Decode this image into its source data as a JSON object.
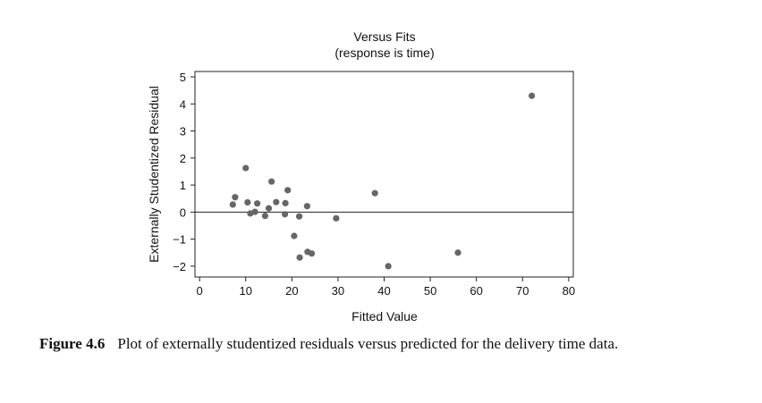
{
  "chart_data": {
    "type": "scatter",
    "title": "Versus Fits",
    "subtitle": "(response is time)",
    "xlabel": "Fitted Value",
    "ylabel": "Externally Studentized Residual",
    "xlim": [
      -1,
      81
    ],
    "ylim": [
      -2.4,
      5.2
    ],
    "xticks": [
      0,
      10,
      20,
      30,
      40,
      50,
      60,
      70,
      80
    ],
    "yticks": [
      -2,
      -1,
      0,
      1,
      2,
      3,
      4,
      5
    ],
    "reference_line_y": 0,
    "grid": false,
    "marker_color": "#666666",
    "points": [
      {
        "x": 7.2,
        "y": 0.28
      },
      {
        "x": 7.7,
        "y": 0.55
      },
      {
        "x": 10.0,
        "y": 1.63
      },
      {
        "x": 10.4,
        "y": 0.36
      },
      {
        "x": 11.0,
        "y": -0.05
      },
      {
        "x": 12.0,
        "y": 0.01
      },
      {
        "x": 12.5,
        "y": 0.32
      },
      {
        "x": 14.2,
        "y": -0.14
      },
      {
        "x": 15.0,
        "y": 0.14
      },
      {
        "x": 15.6,
        "y": 1.13
      },
      {
        "x": 16.6,
        "y": 0.37
      },
      {
        "x": 18.5,
        "y": -0.08
      },
      {
        "x": 18.6,
        "y": 0.33
      },
      {
        "x": 19.1,
        "y": 0.81
      },
      {
        "x": 20.5,
        "y": -0.88
      },
      {
        "x": 21.6,
        "y": -0.16
      },
      {
        "x": 21.7,
        "y": -1.68
      },
      {
        "x": 23.3,
        "y": 0.22
      },
      {
        "x": 23.4,
        "y": -1.47
      },
      {
        "x": 24.3,
        "y": -1.53
      },
      {
        "x": 29.6,
        "y": -0.23
      },
      {
        "x": 38.0,
        "y": 0.7
      },
      {
        "x": 40.9,
        "y": -2.0
      },
      {
        "x": 56.0,
        "y": -1.5
      },
      {
        "x": 72.0,
        "y": 4.3
      }
    ]
  },
  "caption": {
    "label": "Figure 4.6",
    "text": "Plot of externally studentized residuals versus predicted for the delivery time data."
  }
}
